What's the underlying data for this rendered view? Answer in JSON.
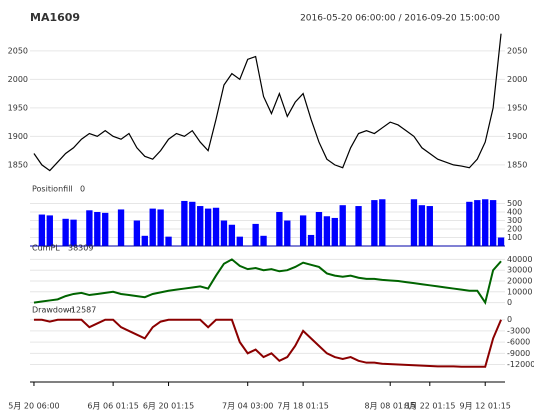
{
  "chart_data": [
    {
      "type": "line",
      "title": "MA1609",
      "subtitle": "2016-05-20 06:00:00 / 2016-09-20 15:00:00",
      "color": "#000000",
      "values": [
        1870,
        1850,
        1840,
        1855,
        1870,
        1880,
        1895,
        1905,
        1900,
        1910,
        1900,
        1895,
        1905,
        1880,
        1865,
        1860,
        1875,
        1895,
        1905,
        1900,
        1910,
        1890,
        1875,
        1930,
        1990,
        2010,
        2000,
        2035,
        2040,
        1970,
        1940,
        1975,
        1935,
        1960,
        1975,
        1930,
        1890,
        1860,
        1850,
        1845,
        1880,
        1905,
        1910,
        1905,
        1915,
        1925,
        1920,
        1910,
        1900,
        1880,
        1870,
        1860,
        1855,
        1850,
        1848,
        1845,
        1860,
        1890,
        1950,
        2080
      ],
      "ylim": [
        1820,
        2090
      ],
      "yticks": [
        1850,
        1900,
        1950,
        2000,
        2050
      ],
      "grid": true
    },
    {
      "type": "bar",
      "title": "Positionfill",
      "last_value": 0,
      "color": "#0000ff",
      "values": [
        0,
        370,
        360,
        0,
        320,
        310,
        0,
        420,
        400,
        390,
        0,
        430,
        0,
        300,
        120,
        440,
        430,
        110,
        0,
        530,
        520,
        470,
        440,
        450,
        300,
        250,
        110,
        0,
        260,
        120,
        0,
        400,
        300,
        0,
        360,
        130,
        400,
        350,
        330,
        480,
        0,
        470,
        0,
        540,
        550,
        0,
        0,
        0,
        550,
        480,
        470,
        0,
        0,
        0,
        0,
        520,
        540,
        550,
        540,
        100
      ],
      "ylim": [
        0,
        600
      ],
      "yticks": [
        100,
        200,
        300,
        400,
        500
      ],
      "grid": true
    },
    {
      "type": "line",
      "title": "CumPL",
      "last_value": 38309,
      "color": "#006400",
      "values": [
        0,
        1000,
        2000,
        3000,
        6000,
        8000,
        9000,
        7000,
        8000,
        9000,
        10000,
        8000,
        7000,
        6000,
        5000,
        8000,
        9500,
        11000,
        12000,
        13000,
        14000,
        15000,
        13000,
        25000,
        36000,
        40000,
        34000,
        31000,
        32000,
        30000,
        31000,
        29000,
        30000,
        33000,
        37000,
        35000,
        33000,
        27000,
        25000,
        24000,
        25000,
        23000,
        22000,
        22000,
        21000,
        20500,
        20000,
        19000,
        18000,
        17000,
        16000,
        15000,
        14000,
        13000,
        12000,
        11000,
        11000,
        0,
        30000,
        38309
      ],
      "ylim": [
        -5000,
        45000
      ],
      "yticks": [
        0,
        10000,
        20000,
        30000,
        40000
      ],
      "grid": true
    },
    {
      "type": "line",
      "title": "Drawdown",
      "last_value": -12587,
      "color": "#8b0000",
      "values": [
        0,
        0,
        -500,
        0,
        0,
        0,
        0,
        -2000,
        -1000,
        0,
        0,
        -2000,
        -3000,
        -4000,
        -5000,
        -2000,
        -500,
        0,
        0,
        0,
        0,
        0,
        -2000,
        0,
        0,
        0,
        -6000,
        -9000,
        -8000,
        -10000,
        -9000,
        -11000,
        -10000,
        -7000,
        -3000,
        -5000,
        -7000,
        -9000,
        -10000,
        -10500,
        -10000,
        -11000,
        -11500,
        -11500,
        -11800,
        -11900,
        -12000,
        -12100,
        -12200,
        -12300,
        -12400,
        -12500,
        -12500,
        -12500,
        -12587,
        -12587,
        -12587,
        -12587,
        -5000,
        0
      ],
      "ylim": [
        -14000,
        1000
      ],
      "yticks": [
        0,
        -3000,
        -6000,
        -9000,
        -12000
      ],
      "grid": true,
      "xticks": [
        {
          "value": 0,
          "label": "5月 20 06:00"
        },
        {
          "value": 10,
          "label": "6月 06 01:15"
        },
        {
          "value": 17,
          "label": "6月 20 01:15"
        },
        {
          "value": 27,
          "label": "7月 04 03:00"
        },
        {
          "value": 34,
          "label": "7月 18 01:15"
        },
        {
          "value": 45,
          "label": "8月 08 01:15"
        },
        {
          "value": 50,
          "label": "8月 22 01:15"
        },
        {
          "value": 57,
          "label": "9月 12 01:15"
        }
      ]
    }
  ]
}
